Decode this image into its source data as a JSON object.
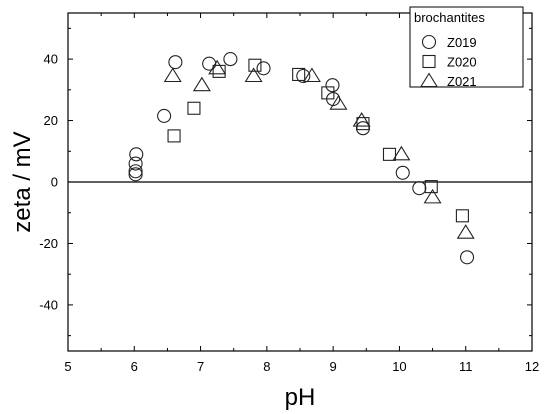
{
  "chart_data": {
    "type": "scatter",
    "xlabel": "pH",
    "ylabel": "zeta / mV",
    "xlim": [
      5,
      12
    ],
    "ylim": [
      -55,
      55
    ],
    "xticks": [
      5,
      6,
      7,
      8,
      9,
      10,
      11,
      12
    ],
    "yticks": [
      -40,
      -20,
      0,
      20,
      40
    ],
    "zero_line": true,
    "grid": false,
    "legend": {
      "title": "brochantites",
      "placement": "top-right"
    },
    "series": [
      {
        "name": "Z019",
        "marker": "circle",
        "points": [
          {
            "x": 6.02,
            "y": 2.5
          },
          {
            "x": 6.02,
            "y": 3.5
          },
          {
            "x": 6.02,
            "y": 6.0
          },
          {
            "x": 6.03,
            "y": 9.0
          },
          {
            "x": 6.45,
            "y": 21.5
          },
          {
            "x": 6.62,
            "y": 39.0
          },
          {
            "x": 7.13,
            "y": 38.5
          },
          {
            "x": 7.45,
            "y": 40.0
          },
          {
            "x": 7.95,
            "y": 37.0
          },
          {
            "x": 8.55,
            "y": 34.5
          },
          {
            "x": 8.99,
            "y": 31.5
          },
          {
            "x": 9.0,
            "y": 27.0
          },
          {
            "x": 9.45,
            "y": 17.5
          },
          {
            "x": 10.05,
            "y": 3.0
          },
          {
            "x": 10.3,
            "y": -2.0
          },
          {
            "x": 11.02,
            "y": -24.5
          }
        ]
      },
      {
        "name": "Z020",
        "marker": "square",
        "points": [
          {
            "x": 6.6,
            "y": 15.0
          },
          {
            "x": 6.9,
            "y": 24.0
          },
          {
            "x": 7.28,
            "y": 36.0
          },
          {
            "x": 7.82,
            "y": 38.0
          },
          {
            "x": 8.48,
            "y": 35.0
          },
          {
            "x": 8.92,
            "y": 29.0
          },
          {
            "x": 9.45,
            "y": 19.0
          },
          {
            "x": 9.85,
            "y": 9.0
          },
          {
            "x": 10.48,
            "y": -1.5
          },
          {
            "x": 10.95,
            "y": -11.0
          }
        ]
      },
      {
        "name": "Z021",
        "marker": "triangle",
        "points": [
          {
            "x": 6.58,
            "y": 34.5
          },
          {
            "x": 7.02,
            "y": 31.5
          },
          {
            "x": 7.25,
            "y": 37.0
          },
          {
            "x": 7.8,
            "y": 34.5
          },
          {
            "x": 8.68,
            "y": 34.5
          },
          {
            "x": 9.08,
            "y": 25.5
          },
          {
            "x": 9.43,
            "y": 20.0
          },
          {
            "x": 10.03,
            "y": 9.0
          },
          {
            "x": 10.5,
            "y": -5.0
          },
          {
            "x": 11.0,
            "y": -16.5
          }
        ]
      }
    ]
  }
}
